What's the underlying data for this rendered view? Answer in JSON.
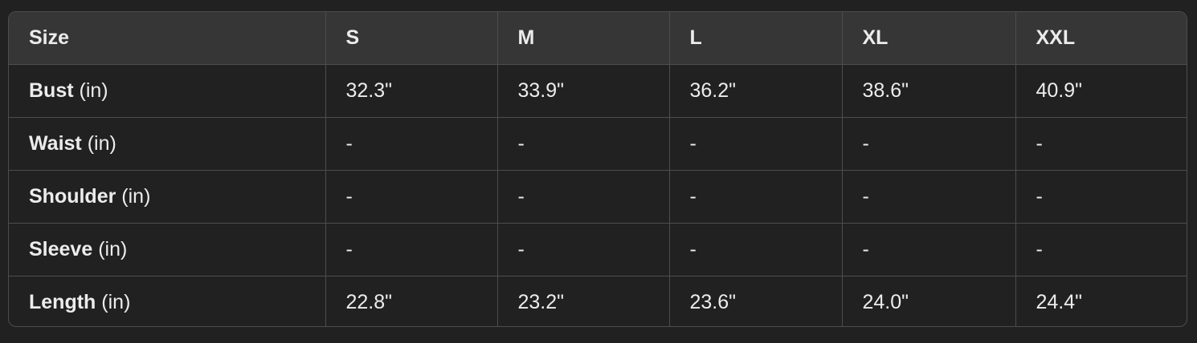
{
  "table": {
    "headers": [
      "Size",
      "S",
      "M",
      "L",
      "XL",
      "XXL"
    ],
    "rows": [
      {
        "label": "Bust",
        "unit": "(in)",
        "values": [
          "32.3\"",
          "33.9\"",
          "36.2\"",
          "38.6\"",
          "40.9\""
        ]
      },
      {
        "label": "Waist",
        "unit": "(in)",
        "values": [
          "-",
          "-",
          "-",
          "-",
          "-"
        ]
      },
      {
        "label": "Shoulder",
        "unit": "(in)",
        "values": [
          "-",
          "-",
          "-",
          "-",
          "-"
        ]
      },
      {
        "label": "Sleeve",
        "unit": "(in)",
        "values": [
          "-",
          "-",
          "-",
          "-",
          "-"
        ]
      },
      {
        "label": "Length",
        "unit": "(in)",
        "values": [
          "22.8\"",
          "23.2\"",
          "23.6\"",
          "24.0\"",
          "24.4\""
        ]
      }
    ]
  },
  "colors": {
    "background": "#212121",
    "header_background": "#363636",
    "border": "#4d4d4d",
    "text": "#ececec"
  }
}
